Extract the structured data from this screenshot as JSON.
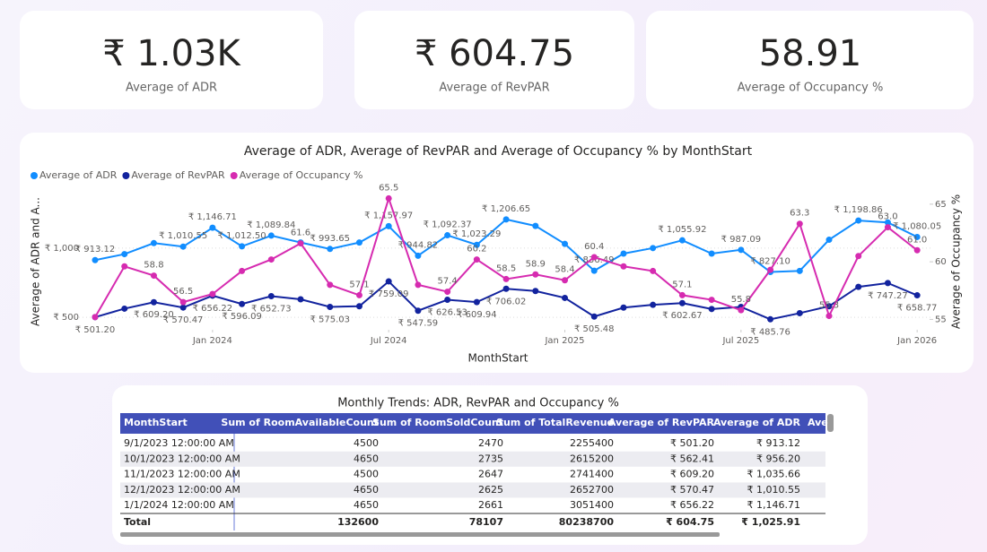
{
  "cards": [
    {
      "value": "₹ 1.03K",
      "label": "Average of ADR"
    },
    {
      "value": "₹ 604.75",
      "label": "Average of RevPAR"
    },
    {
      "value": "58.91",
      "label": "Average of Occupancy %"
    }
  ],
  "chart_data": {
    "type": "line",
    "title": "Average of ADR, Average of RevPAR and Average of Occupancy % by MonthStart",
    "x_label": "MonthStart",
    "y_label": "Average of ADR and A...",
    "y2_label": "Average of Occupancy %",
    "x": [
      "2023-09",
      "2023-10",
      "2023-11",
      "2023-12",
      "2024-01",
      "2024-02",
      "2024-03",
      "2024-04",
      "2024-05",
      "2024-06",
      "2024-07",
      "2024-08",
      "2024-09",
      "2024-10",
      "2024-11",
      "2024-12",
      "2025-01",
      "2025-02",
      "2025-03",
      "2025-04",
      "2025-05",
      "2025-06",
      "2025-07",
      "2025-08",
      "2025-09",
      "2025-10",
      "2025-11",
      "2025-12",
      "2026-01"
    ],
    "xticks": [
      {
        "value": 4,
        "label": "Jan 2024"
      },
      {
        "value": 10,
        "label": "Jul 2024"
      },
      {
        "value": 16,
        "label": "Jan 2025"
      },
      {
        "value": 22,
        "label": "Jul 2025"
      },
      {
        "value": 28,
        "label": "Jan 2026"
      }
    ],
    "ylim": [
      410,
      1400
    ],
    "yticks": [
      {
        "value": 500,
        "label": "₹ 500"
      },
      {
        "value": 1000,
        "label": "₹ 1,000"
      }
    ],
    "y2lim": [
      54.1,
      66
    ],
    "y2ticks": [
      55,
      60,
      65
    ],
    "grid": true,
    "legend": "top-left",
    "series": [
      {
        "name": "Average of ADR",
        "color": "#118dff",
        "values": [
          913.12,
          956.2,
          1035.66,
          1010.55,
          1146.71,
          1012.5,
          1089.84,
          1040,
          993.65,
          1040,
          1157.97,
          944.82,
          1092.37,
          1023.29,
          1206.65,
          1160,
          1030,
          836.49,
          960,
          1000,
          1055.92,
          960,
          987.09,
          827.1,
          835,
          1060,
          1198.86,
          1185,
          1080.05
        ],
        "value_labels": [
          "₹ 913.12",
          null,
          null,
          "₹ 1,010.55",
          "₹ 1,146.71",
          "₹ 1,012.50",
          "₹ 1,089.84",
          null,
          "₹ 993.65",
          null,
          "₹ 1,157.97",
          "₹ 944.82",
          "₹ 1,092.37",
          "₹ 1,023.29",
          "₹ 1,206.65",
          null,
          null,
          "₹ 836.49",
          null,
          null,
          "₹ 1,055.92",
          null,
          "₹ 987.09",
          "₹ 827.10",
          null,
          null,
          "₹ 1,198.86",
          null,
          "₹ 1,080.05"
        ]
      },
      {
        "name": "Average of RevPAR",
        "color": "#12239e",
        "values": [
          501.2,
          562.41,
          609.2,
          570.47,
          656.22,
          596.09,
          652.73,
          630,
          575.03,
          580,
          759.09,
          547.59,
          626.53,
          609.94,
          706.02,
          690,
          640,
          505.48,
          570,
          590,
          602.67,
          560,
          575,
          485.76,
          530,
          580,
          720,
          747.27,
          658.77
        ],
        "value_labels": [
          "₹ 501.20",
          null,
          "₹ 609.20",
          "₹ 570.47",
          "₹ 656.22",
          "₹ 596.09",
          "₹ 652.73",
          null,
          "₹ 575.03",
          null,
          "₹ 759.09",
          "₹ 547.59",
          "₹ 626.53",
          "₹ 609.94",
          "₹ 706.02",
          null,
          null,
          "₹ 505.48",
          null,
          null,
          "₹ 602.67",
          null,
          null,
          "₹ 485.76",
          null,
          null,
          null,
          "₹ 747.27",
          "₹ 658.77"
        ]
      },
      {
        "name": "Average of Occupancy %",
        "color": "#d62bb0",
        "axis": "y2",
        "values": [
          55.2,
          59.6,
          58.8,
          56.5,
          57.2,
          59.2,
          60.2,
          61.6,
          58.0,
          57.1,
          65.5,
          58.0,
          57.4,
          60.2,
          58.5,
          58.9,
          58.4,
          60.4,
          59.6,
          59.2,
          57.1,
          56.7,
          55.8,
          59.3,
          63.3,
          55.3,
          60.5,
          63.0,
          61.0
        ],
        "value_labels": [
          null,
          null,
          "58.8",
          "56.5",
          null,
          null,
          null,
          "61.6",
          null,
          "57.1",
          "65.5",
          null,
          "57.4",
          "60.2",
          "58.5",
          "58.9",
          "58.4",
          "60.4",
          null,
          null,
          "57.1",
          null,
          "55.8",
          null,
          "63.3",
          "55.3",
          null,
          "63.0",
          "61.0"
        ]
      }
    ]
  },
  "table": {
    "title": "Monthly Trends: ADR, RevPAR and Occupancy %",
    "header": [
      "MonthStart",
      "Sum of RoomAvailableCount",
      "Sum of RoomSoldCount",
      "Sum of TotalRevenue",
      "Average of RevPAR",
      "Average of ADR",
      "Ave"
    ],
    "rows": [
      [
        "9/1/2023 12:00:00 AM",
        4500,
        2470,
        2255400,
        "₹ 501.20",
        "₹ 913.12"
      ],
      [
        "10/1/2023 12:00:00 AM",
        4650,
        2735,
        2615200,
        "₹ 562.41",
        "₹ 956.20"
      ],
      [
        "11/1/2023 12:00:00 AM",
        4500,
        2647,
        2741400,
        "₹ 609.20",
        "₹ 1,035.66"
      ],
      [
        "12/1/2023 12:00:00 AM",
        4650,
        2625,
        2652700,
        "₹ 570.47",
        "₹ 1,010.55"
      ],
      [
        "1/1/2024 12:00:00 AM",
        4650,
        2661,
        3051400,
        "₹ 656.22",
        "₹ 1,146.71"
      ]
    ],
    "total": [
      "Total",
      132600,
      78107,
      80238700,
      "₹ 604.75",
      "₹ 1,025.91"
    ]
  }
}
